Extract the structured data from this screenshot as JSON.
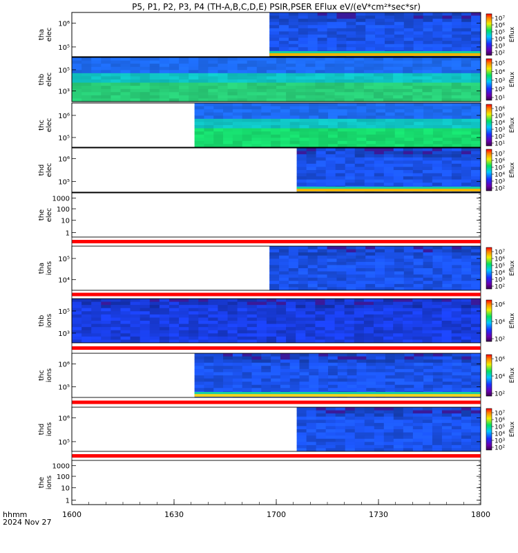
{
  "title": "P5, P1, P2, P3, P4 (TH-A,B,C,D,E) PSIR,PSER EFlux eV/(eV*cm²*sec*sr)",
  "x_axis": {
    "ticks": [
      "1600",
      "1630",
      "1700",
      "1730",
      "1800"
    ],
    "label_line1": "hhmm",
    "label_line2": "2024 Nov 27"
  },
  "colorbar_label": "Eflux",
  "chart_data": [
    {
      "type": "heatmap",
      "panel": "tha-elec",
      "ylabel": [
        "tha",
        "elec"
      ],
      "y_tick_labels": [
        "10⁶",
        "10⁵"
      ],
      "data_start": "16:58",
      "dominant_color": "#1c55f5",
      "low_energy_band": "#f0b400",
      "colorbar_ticks": [
        "10⁷",
        "10⁶",
        "10⁵",
        "10⁴",
        "10³",
        "10²"
      ]
    },
    {
      "type": "heatmap",
      "panel": "thb-elec",
      "ylabel": [
        "thb",
        "elec"
      ],
      "y_tick_labels": [
        "10⁵",
        "10³"
      ],
      "data_start": "16:00",
      "dominant_color": "#2ad27a",
      "colorbar_ticks": [
        "10⁵",
        "10⁴",
        "10³",
        "10²",
        "10¹"
      ]
    },
    {
      "type": "heatmap",
      "panel": "thc-elec",
      "ylabel": [
        "thc",
        "elec"
      ],
      "y_tick_labels": [
        "10⁶",
        "10⁵"
      ],
      "data_start": "16:36",
      "dominant_color": "#18e070",
      "colorbar_ticks": [
        "10⁶",
        "10⁵",
        "10⁴",
        "10³",
        "10²",
        "10¹"
      ]
    },
    {
      "type": "heatmap",
      "panel": "thd-elec",
      "ylabel": [
        "thd",
        "elec"
      ],
      "y_tick_labels": [
        "10⁶",
        "10⁵"
      ],
      "data_start": "17:06",
      "dominant_color": "#1c55f5",
      "low_energy_band": "#f0b400",
      "colorbar_ticks": [
        "10⁷",
        "10⁶",
        "10⁵",
        "10⁴",
        "10³",
        "10²"
      ]
    },
    {
      "type": "empty",
      "panel": "the-elec",
      "ylabel": [
        "the",
        "elec"
      ],
      "y_tick_labels": [
        "1000",
        "100",
        "10",
        "1"
      ]
    },
    {
      "type": "heatmap",
      "panel": "tha-ions",
      "ylabel": [
        "tha",
        "ions"
      ],
      "y_tick_labels": [
        "10⁵",
        "10⁴"
      ],
      "data_start": "16:58",
      "dominant_color": "#1c55f5",
      "colorbar_ticks": [
        "10⁷",
        "10⁶",
        "10⁵",
        "10⁴",
        "10³",
        "10²"
      ]
    },
    {
      "type": "heatmap",
      "panel": "thb-ions",
      "ylabel": [
        "thb",
        "ions"
      ],
      "y_tick_labels": [
        "10⁵",
        "10³"
      ],
      "data_start": "16:00",
      "dominant_color": "#1a3fe8",
      "colorbar_ticks": [
        "10⁶",
        "10⁴",
        "10²"
      ]
    },
    {
      "type": "heatmap",
      "panel": "thc-ions",
      "ylabel": [
        "thc",
        "ions"
      ],
      "y_tick_labels": [
        "10⁶",
        "10⁵"
      ],
      "data_start": "16:36",
      "dominant_color": "#1c55f5",
      "low_energy_band": "#f0d020",
      "colorbar_ticks": [
        "10⁶",
        "10⁴",
        "10²"
      ]
    },
    {
      "type": "heatmap",
      "panel": "thd-ions",
      "ylabel": [
        "thd",
        "ions"
      ],
      "y_tick_labels": [
        "10⁶",
        "10⁵"
      ],
      "data_start": "17:06",
      "dominant_color": "#1c55f5",
      "colorbar_ticks": [
        "10⁷",
        "10⁶",
        "10⁵",
        "10⁴",
        "10³",
        "10²"
      ]
    },
    {
      "type": "empty",
      "panel": "the-ions",
      "ylabel": [
        "the",
        "ions"
      ],
      "y_tick_labels": [
        "1000",
        "100",
        "10",
        "1"
      ]
    }
  ]
}
